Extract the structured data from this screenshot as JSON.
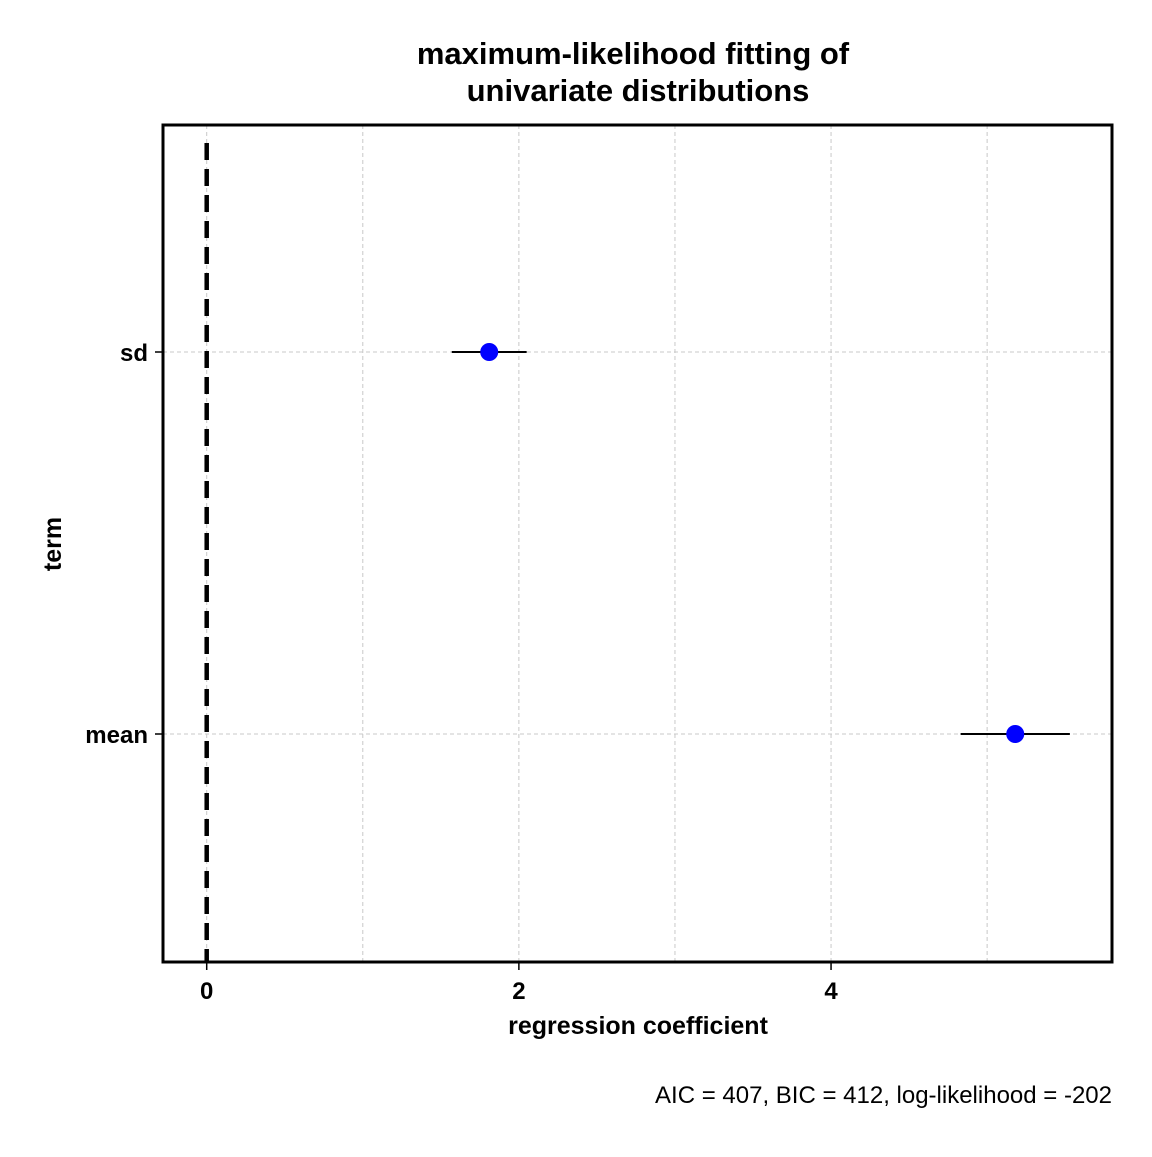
{
  "chart_data": {
    "type": "scatter",
    "title_lines": [
      "maximum-likelihood fitting of",
      "univariate distributions"
    ],
    "xlabel": "regression coefficient",
    "ylabel": "term",
    "caption": "AIC = 407, BIC = 412, log-likelihood = -202",
    "xlim": [
      -0.28,
      5.8
    ],
    "xticks": [
      0,
      2,
      4
    ],
    "xtick_labels": [
      "0",
      "2",
      "4"
    ],
    "minor_gridlines_x": [
      1,
      3,
      5
    ],
    "reference_line_x": 0,
    "categories": [
      "sd",
      "mean"
    ],
    "points": [
      {
        "term": "sd",
        "estimate": 1.81,
        "conf_low": 1.57,
        "conf_high": 2.05
      },
      {
        "term": "mean",
        "estimate": 5.18,
        "conf_low": 4.83,
        "conf_high": 5.53
      }
    ],
    "point_color": "#0000ff",
    "grid": true,
    "legend": "none"
  }
}
